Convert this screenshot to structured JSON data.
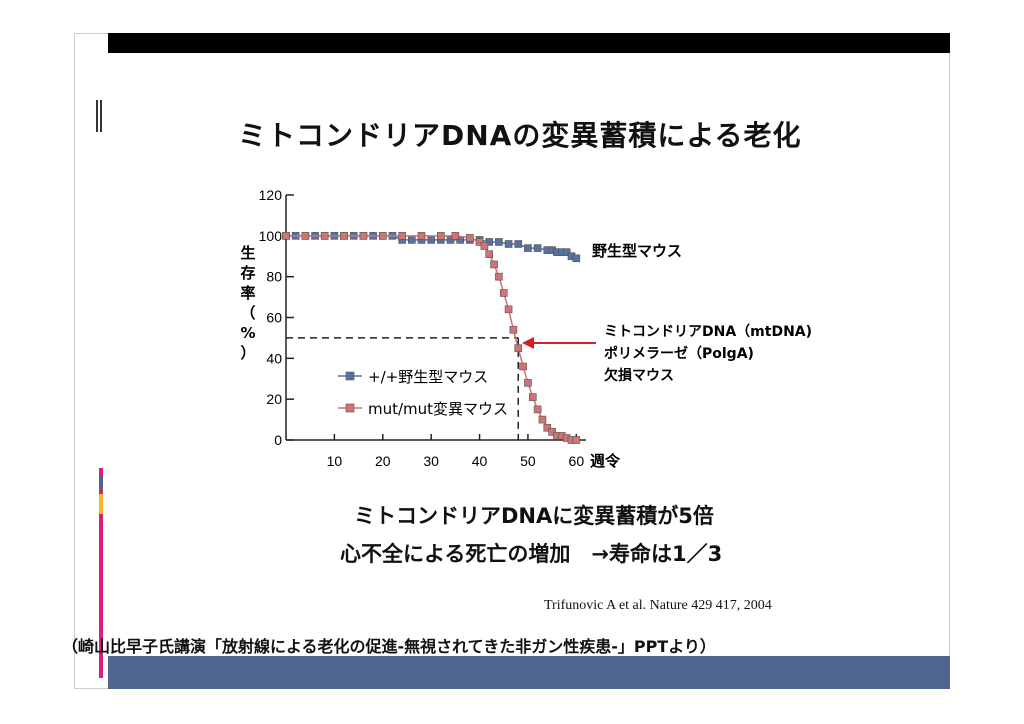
{
  "slide": {
    "title": "ミトコンドリアDNAの変異蓄積による老化",
    "caption_line1": "ミトコンドリアDNAに変異蓄積が5倍",
    "caption_line2": "心不全による死亡の増加　→寿命は1／3",
    "citation": "Trifunovic A et al. Nature 429 417, 2004",
    "source_note": "（崎山比早子氏講演「放射線による老化の促進-無視されてきた非ガン性疾患-」PPTより）"
  },
  "colors": {
    "wild_type": "#5a70a0",
    "mutant": "#cf7474",
    "arrow": "#d42020",
    "accent_pink": "#e01b79",
    "accent_blue": "#4f6491",
    "accent_yellow": "#f2b822"
  },
  "chart_data": {
    "type": "line",
    "ylabel": "生存率（%）",
    "xlabel": "週令",
    "xlim": [
      0,
      62
    ],
    "ylim": [
      0,
      120
    ],
    "xticks": [
      10,
      20,
      30,
      40,
      50,
      60
    ],
    "yticks": [
      0,
      20,
      40,
      60,
      80,
      100,
      120
    ],
    "series": [
      {
        "name": "+/+野生型マウス",
        "x": [
          0,
          2,
          4,
          6,
          8,
          10,
          12,
          14,
          16,
          18,
          20,
          22,
          24,
          26,
          28,
          30,
          32,
          34,
          36,
          38,
          40,
          42,
          44,
          46,
          48,
          50,
          52,
          54,
          55,
          56,
          57,
          58,
          59,
          60
        ],
        "y": [
          100,
          100,
          100,
          100,
          100,
          100,
          100,
          100,
          100,
          100,
          100,
          100,
          98,
          98,
          98,
          98,
          98,
          98,
          98,
          98,
          98,
          97,
          97,
          96,
          96,
          94,
          94,
          93,
          93,
          92,
          92,
          92,
          90,
          89
        ]
      },
      {
        "name": "mut/mut変異マウス",
        "x": [
          0,
          4,
          8,
          12,
          16,
          20,
          24,
          28,
          32,
          35,
          38,
          40,
          41,
          42,
          43,
          44,
          45,
          46,
          47,
          48,
          49,
          50,
          51,
          52,
          53,
          54,
          55,
          56,
          57,
          58,
          59,
          60
        ],
        "y": [
          100,
          100,
          100,
          100,
          100,
          100,
          100,
          100,
          100,
          100,
          99,
          97,
          95,
          91,
          86,
          80,
          72,
          64,
          54,
          45,
          36,
          28,
          21,
          15,
          10,
          6,
          4,
          2,
          2,
          1,
          0,
          0
        ]
      }
    ],
    "legend": {
      "placement": "lower-left",
      "entries": [
        "+/+野生型マウス",
        "mut/mut変異マウス"
      ]
    },
    "annotations": {
      "wild_type_label": "野生型マウス",
      "mutant_label_line1": "ミトコンドリアDNA（mtDNA)",
      "mutant_label_line2": "ポリメラーゼ（PolgA)",
      "mutant_label_line3": "欠損マウス",
      "half_survival": {
        "x": 48,
        "y": 50
      }
    }
  }
}
